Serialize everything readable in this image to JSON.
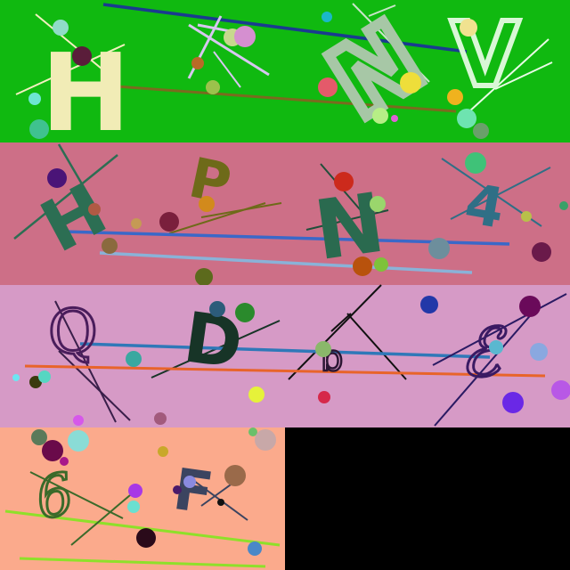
{
  "background": "#000000",
  "panels": [
    {
      "name": "panel-green",
      "color": "#10b910",
      "letters": [
        {
          "char": "H",
          "color": "#f1ecb6",
          "font": "bold"
        },
        {
          "char": "N",
          "color": "#a7c7a6",
          "font": "outline"
        },
        {
          "char": "V",
          "color": "#d9f7d6",
          "font": "outline"
        }
      ]
    },
    {
      "name": "panel-rose",
      "color": "#cd6f87",
      "letters": [
        {
          "char": "H",
          "color": "#2c6e53",
          "font": "bold"
        },
        {
          "char": "P",
          "color": "#6e6a19",
          "font": "bold"
        },
        {
          "char": "N",
          "color": "#2a6a4f",
          "font": "bold"
        },
        {
          "char": "4",
          "color": "#2f6f86",
          "font": "bold"
        }
      ]
    },
    {
      "name": "panel-lilac",
      "color": "#d69ac6",
      "letters": [
        {
          "char": "Q",
          "color": "#4a1d5c",
          "font": "outline"
        },
        {
          "char": "D",
          "color": "#173427",
          "font": "bold"
        },
        {
          "char": "b",
          "color": "#2c1633",
          "font": "outline"
        },
        {
          "char": "ℰ",
          "color": "#3a1a63",
          "font": "script"
        }
      ]
    },
    {
      "name": "panel-peach",
      "color": "#fbaa8c",
      "letters": [
        {
          "char": "6",
          "color": "#3a6a2a",
          "font": "script"
        },
        {
          "char": "F",
          "color": "#3b4460",
          "font": "bold"
        }
      ]
    }
  ]
}
